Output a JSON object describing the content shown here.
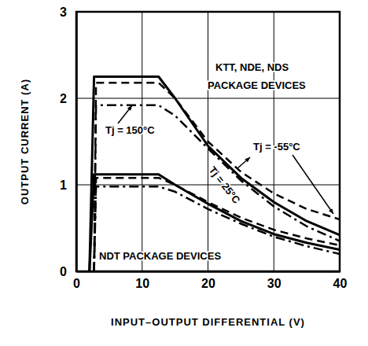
{
  "chart_data": {
    "type": "line",
    "xlabel": "INPUT–OUTPUT DIFFERENTIAL (V)",
    "ylabel": "OUTPUT CURRENT (A)",
    "x": [
      2,
      2.7,
      3,
      5,
      10,
      12.5,
      15,
      20,
      25,
      30,
      35,
      40
    ],
    "series": [
      {
        "color": "#000000",
        "line_style": "solid",
        "values": [
          0,
          2.25,
          2.25,
          2.25,
          2.25,
          2.25,
          2.0,
          1.45,
          1.08,
          0.8,
          0.58,
          0.42
        ]
      },
      {
        "color": "#000000",
        "line_style": "dashed",
        "values": [
          null,
          0,
          2.18,
          2.18,
          2.18,
          2.18,
          2.0,
          1.5,
          1.15,
          0.9,
          0.72,
          0.6
        ]
      },
      {
        "color": "#000000",
        "line_style": "dashdot",
        "values": [
          null,
          0,
          1.92,
          1.92,
          1.92,
          1.92,
          1.8,
          1.42,
          1.05,
          0.75,
          0.52,
          0.35
        ]
      },
      {
        "color": "#000000",
        "line_style": "solid",
        "values": [
          0,
          1.12,
          1.12,
          1.12,
          1.12,
          1.12,
          1.0,
          0.78,
          0.58,
          0.43,
          0.33,
          0.25
        ]
      },
      {
        "color": "#000000",
        "line_style": "dashed",
        "values": [
          null,
          0,
          1.08,
          1.08,
          1.08,
          1.08,
          1.0,
          0.8,
          0.62,
          0.48,
          0.38,
          0.3
        ]
      },
      {
        "color": "#000000",
        "line_style": "dashdot",
        "values": [
          null,
          0,
          0.98,
          0.98,
          0.98,
          0.98,
          0.92,
          0.72,
          0.55,
          0.4,
          0.29,
          0.2
        ]
      }
    ],
    "annotations": [
      "KTT, NDE, NDS",
      "PACKAGE DEVICES",
      "Tj = 150°C",
      "Tj = -55°C",
      "Tj = 25°C",
      "NDT PACKAGE DEVICES"
    ],
    "xlim": [
      0,
      40
    ],
    "ylim": [
      0,
      3
    ],
    "xticks": [
      0,
      10,
      20,
      30,
      40
    ],
    "yticks": [
      0,
      1,
      2,
      3
    ],
    "grid": true
  }
}
